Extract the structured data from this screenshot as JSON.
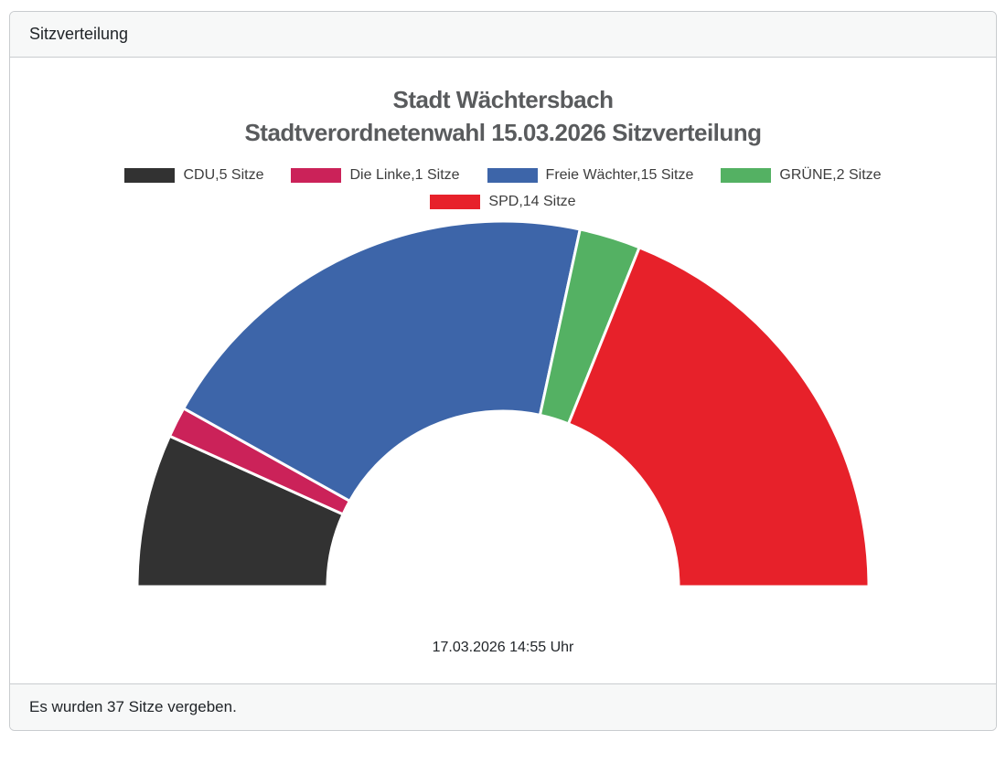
{
  "panel": {
    "header_title": "Sitzverteilung",
    "footer_text": "Es wurden 37 Sitze vergeben."
  },
  "chart_data": {
    "type": "pie",
    "subtype": "half-donut",
    "title": "Stadt Wächtersbach Stadtverordnetenwahl 15.03.2026 Sitzverteilung",
    "title_lines": [
      "Stadt Wächtersbach",
      "Stadtverordnetenwahl 15.03.2026 Sitzverteilung"
    ],
    "timestamp": "17.03.2026 14:55 Uhr",
    "total_seats": 37,
    "unit": "Sitze",
    "legend_position": "top-center",
    "start_angle_deg": 180,
    "end_angle_deg": 0,
    "separator_color": "#ffffff",
    "series": [
      {
        "name": "CDU",
        "seats": 5,
        "label": "CDU,5 Sitze",
        "color": "#323232"
      },
      {
        "name": "Die Linke",
        "seats": 1,
        "label": "Die Linke,1 Sitze",
        "color": "#cb2259"
      },
      {
        "name": "Freie Wächter",
        "seats": 15,
        "label": "Freie Wächter,15 Sitze",
        "color": "#3d65a9"
      },
      {
        "name": "GRÜNE",
        "seats": 2,
        "label": "GRÜNE,2 Sitze",
        "color": "#54b163"
      },
      {
        "name": "SPD",
        "seats": 14,
        "label": "SPD,14 Sitze",
        "color": "#e7212a"
      }
    ]
  }
}
